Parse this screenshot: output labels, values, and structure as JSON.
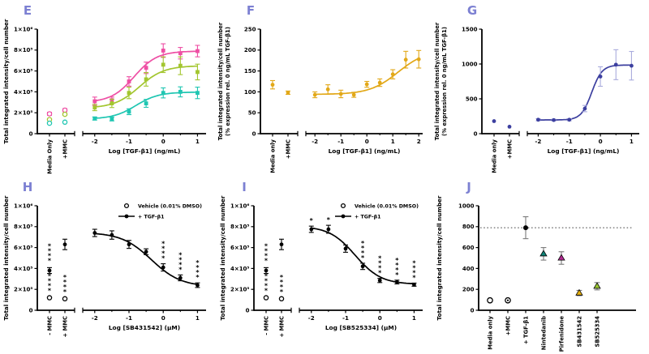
{
  "style": {
    "background": "#ffffff",
    "panel_letter_color": "#7c80d2",
    "axis_color": "#000000",
    "pink": "#ee4fa4",
    "green": "#a3c62f",
    "teal": "#1fc6b2",
    "gold": "#e2a818",
    "indigo": "#3c3f9f",
    "indigo_light": "#a9abdd",
    "black": "#000000",
    "gray_err": "#7a7a7a"
  },
  "chart_data": [
    {
      "letter": "E",
      "type": "scatter",
      "ylabel_lines": [
        "Total integrated intensity/cell number"
      ],
      "ymax": 1000000,
      "yticks": [
        {
          "v": 0,
          "label": "0"
        },
        {
          "v": 200000,
          "label": "2×10⁵"
        },
        {
          "v": 400000,
          "label": "4×10⁵"
        },
        {
          "v": 600000,
          "label": "6×10⁵"
        },
        {
          "v": 800000,
          "label": "8×10⁵"
        },
        {
          "v": 1000000,
          "label": "1×10⁶"
        }
      ],
      "xlabel": "Log [TGF-β1] (ng/mL)",
      "xrange": [
        -2.35,
        1.25
      ],
      "x_major_ticks": [
        -2,
        -1,
        0,
        1
      ],
      "x_minor_step": 0.5,
      "axis_x": 46,
      "break_categories": {
        "labels": [
          "Media Only",
          "+MMC"
        ],
        "points": [
          {
            "cat": 0,
            "y": 190000,
            "err": 15000,
            "marker": "circle-open",
            "color": "#ee4fa4"
          },
          {
            "cat": 0,
            "y": 135000,
            "err": 0,
            "marker": "circle-open",
            "color": "#a3c62f"
          },
          {
            "cat": 0,
            "y": 100000,
            "err": 0,
            "marker": "circle-open",
            "color": "#1fc6b2"
          },
          {
            "cat": 1,
            "y": 225000,
            "err": 15000,
            "marker": "circle-open",
            "color": "#ee4fa4"
          },
          {
            "cat": 1,
            "y": 185000,
            "err": 10000,
            "marker": "circle-open",
            "color": "#a3c62f"
          },
          {
            "cat": 1,
            "y": 110000,
            "err": 0,
            "marker": "circle-open",
            "color": "#1fc6b2"
          }
        ]
      },
      "series": [
        {
          "name": "pink-series",
          "color": "#ee4fa4",
          "marker": "square",
          "x": [
            -2,
            -1.5,
            -1,
            -0.5,
            0,
            0.5,
            1
          ],
          "y": [
            310000,
            320000,
            500000,
            630000,
            795000,
            770000,
            790000
          ],
          "err": [
            40000,
            30000,
            45000,
            55000,
            65000,
            55000,
            55000
          ],
          "curve": {
            "bottom": 300000,
            "top": 790000,
            "logec50": -0.85,
            "hill": 1.3
          }
        },
        {
          "name": "green-series",
          "color": "#a3c62f",
          "marker": "square",
          "x": [
            -2,
            -1.5,
            -1,
            -0.5,
            0,
            0.5,
            1
          ],
          "y": [
            250000,
            290000,
            390000,
            520000,
            660000,
            650000,
            590000
          ],
          "err": [
            30000,
            40000,
            55000,
            65000,
            75000,
            85000,
            75000
          ],
          "curve": {
            "bottom": 245000,
            "top": 650000,
            "logec50": -0.7,
            "hill": 1.2
          }
        },
        {
          "name": "teal-series",
          "color": "#1fc6b2",
          "marker": "square",
          "x": [
            -2,
            -1.5,
            -1,
            -0.5,
            0,
            0.5,
            1
          ],
          "y": [
            145000,
            140000,
            210000,
            290000,
            390000,
            400000,
            390000
          ],
          "err": [
            15000,
            18000,
            28000,
            38000,
            48000,
            48000,
            55000
          ],
          "curve": {
            "bottom": 140000,
            "top": 398000,
            "logec50": -0.8,
            "hill": 1.3
          }
        }
      ]
    },
    {
      "letter": "F",
      "type": "scatter",
      "ylabel_lines": [
        "Total integrated intensity/cell number",
        "(% expression rel. 0 ng/mL TGF-β1)"
      ],
      "ymax": 250,
      "yticks": [
        {
          "v": 0,
          "label": "0"
        },
        {
          "v": 50,
          "label": "50"
        },
        {
          "v": 100,
          "label": "100"
        },
        {
          "v": 150,
          "label": "150"
        },
        {
          "v": 200,
          "label": "200"
        },
        {
          "v": 250,
          "label": "250"
        }
      ],
      "xlabel": "Log [TGF-β1] (ng/mL)",
      "xrange": [
        -2.35,
        2.15
      ],
      "x_major_ticks": [
        -2,
        -1,
        0,
        1,
        2
      ],
      "x_minor_step": 0.5,
      "axis_x": 54,
      "break_categories": {
        "labels": [
          "Media only",
          "+MMC"
        ],
        "points": [
          {
            "cat": 0,
            "y": 117,
            "err": 10,
            "marker": "circle-filled",
            "color": "#e2a818"
          },
          {
            "cat": 1,
            "y": 98,
            "err": 4,
            "marker": "circle-filled",
            "color": "#e2a818"
          }
        ]
      },
      "series": [
        {
          "name": "tgfb1-series",
          "color": "#e2a818",
          "marker": "circle-filled",
          "x": [
            -2,
            -1.5,
            -1,
            -0.5,
            0,
            0.5,
            1,
            1.5,
            2
          ],
          "y": [
            93,
            106,
            95,
            93,
            118,
            122,
            142,
            177,
            178
          ],
          "err": [
            7,
            11,
            9,
            6,
            7,
            9,
            11,
            20,
            21
          ],
          "curve": {
            "bottom": 94,
            "top": 200,
            "logec50": 1.2,
            "hill": 0.8
          }
        }
      ]
    },
    {
      "letter": "G",
      "type": "scatter",
      "ylabel_lines": [
        "Total integrated intensity/cell number",
        "(% expression rel. 0 ng/mL TGF-β1)"
      ],
      "ymax": 1500,
      "yticks": [
        {
          "v": 0,
          "label": "0"
        },
        {
          "v": 500,
          "label": "500"
        },
        {
          "v": 1000,
          "label": "1000"
        },
        {
          "v": 1500,
          "label": "1500"
        }
      ],
      "xlabel": "Log [TGF-β1] (ng/mL)",
      "xrange": [
        -2.35,
        1.25
      ],
      "x_major_ticks": [
        -2,
        -1,
        0,
        1
      ],
      "x_minor_step": 0.5,
      "axis_x": 60,
      "break_categories": {
        "labels": [
          "Media only",
          "+MMC"
        ],
        "points": [
          {
            "cat": 0,
            "y": 180,
            "err": 0,
            "marker": "circle-filled",
            "color": "#3c3f9f"
          },
          {
            "cat": 1,
            "y": 100,
            "err": 0,
            "marker": "circle-filled",
            "color": "#3c3f9f"
          }
        ]
      },
      "series": [
        {
          "name": "tgfb1-series",
          "color": "#3c3f9f",
          "err_color": "#a9abdd",
          "marker": "circle-filled",
          "x": [
            -2,
            -1.5,
            -1,
            -0.5,
            0,
            0.5,
            1
          ],
          "y": [
            200,
            195,
            200,
            360,
            820,
            990,
            975
          ],
          "err": [
            15,
            12,
            15,
            45,
            140,
            215,
            205
          ],
          "curve": {
            "bottom": 197,
            "top": 985,
            "logec50": -0.28,
            "hill": 2.6
          }
        }
      ]
    },
    {
      "letter": "H",
      "type": "scatter",
      "ylabel_lines": [
        "Total integrated intensity/cell number"
      ],
      "ymax": 1000000,
      "yticks": [
        {
          "v": 0,
          "label": "0"
        },
        {
          "v": 200000,
          "label": "2×10⁵"
        },
        {
          "v": 400000,
          "label": "4×10⁵"
        },
        {
          "v": 600000,
          "label": "6×10⁵"
        },
        {
          "v": 800000,
          "label": "8×10⁵"
        },
        {
          "v": 1000000,
          "label": "1×10⁶"
        }
      ],
      "xlabel": "Log [SB431542] (μM)",
      "xrange": [
        -2.35,
        1.25
      ],
      "x_major_ticks": [
        -2,
        -1,
        0,
        1
      ],
      "x_minor_step": 0.5,
      "axis_x": 46,
      "legend": {
        "items": [
          {
            "marker": "circle-open",
            "label": "Vehicle (0.01% DMSO)"
          },
          {
            "marker": "line-circle",
            "label": "+ TGF-β1"
          }
        ]
      },
      "break_categories": {
        "labels": [
          "- MMC",
          "+ MMC"
        ],
        "points": [
          {
            "cat": 0,
            "y": 380000,
            "err": 28000,
            "marker": "circle-filled",
            "color": "#000000",
            "stars": "****"
          },
          {
            "cat": 0,
            "y": 120000,
            "err": 0,
            "marker": "circle-open",
            "color": "#000000",
            "stars": "****"
          },
          {
            "cat": 1,
            "y": 630000,
            "err": 50000,
            "marker": "circle-filled",
            "color": "#000000"
          },
          {
            "cat": 1,
            "y": 110000,
            "err": 0,
            "marker": "circle-open",
            "color": "#000000",
            "stars": "****"
          }
        ]
      },
      "series": [
        {
          "name": "tgfb1-series",
          "color": "#000000",
          "marker": "circle-filled",
          "x": [
            -2,
            -1.5,
            -1,
            -0.5,
            0,
            0.5,
            1
          ],
          "y": [
            740000,
            720000,
            630000,
            560000,
            410000,
            310000,
            240000
          ],
          "err": [
            35000,
            40000,
            38000,
            28000,
            35000,
            28000,
            22000
          ],
          "curve": {
            "bottom": 225000,
            "top": 745000,
            "logec50": -0.35,
            "hill": -1.0
          },
          "stars": [
            {
              "i": 4,
              "t": "****"
            },
            {
              "i": 5,
              "t": "****"
            },
            {
              "i": 6,
              "t": "****"
            }
          ]
        }
      ]
    },
    {
      "letter": "I",
      "type": "scatter",
      "ylabel_lines": [
        "Total integrated intensity/cell number"
      ],
      "ymax": 1000000,
      "yticks": [
        {
          "v": 0,
          "label": "0"
        },
        {
          "v": 200000,
          "label": "2×10⁵"
        },
        {
          "v": 400000,
          "label": "4×10⁵"
        },
        {
          "v": 600000,
          "label": "6×10⁵"
        },
        {
          "v": 800000,
          "label": "8×10⁵"
        },
        {
          "v": 1000000,
          "label": "1×10⁶"
        }
      ],
      "xlabel": "Log [SB525334] (μM)",
      "xrange": [
        -2.35,
        1.25
      ],
      "x_major_ticks": [
        -2,
        -1,
        0,
        1
      ],
      "x_minor_step": 0.5,
      "axis_x": 46,
      "legend": {
        "items": [
          {
            "marker": "circle-open",
            "label": "Vehicle (0.01% DMSO)"
          },
          {
            "marker": "line-circle",
            "label": "+ TGF-β1"
          }
        ]
      },
      "break_categories": {
        "labels": [
          "- MMC",
          "+ MMC"
        ],
        "points": [
          {
            "cat": 0,
            "y": 380000,
            "err": 28000,
            "marker": "circle-filled",
            "color": "#000000",
            "stars": "****"
          },
          {
            "cat": 0,
            "y": 120000,
            "err": 0,
            "marker": "circle-open",
            "color": "#000000",
            "stars": "****"
          },
          {
            "cat": 1,
            "y": 630000,
            "err": 50000,
            "marker": "circle-filled",
            "color": "#000000"
          },
          {
            "cat": 1,
            "y": 110000,
            "err": 0,
            "marker": "circle-open",
            "color": "#000000",
            "stars": "****"
          }
        ]
      },
      "series": [
        {
          "name": "tgfb1-series",
          "color": "#000000",
          "marker": "circle-filled",
          "x": [
            -2,
            -1.5,
            -1,
            -0.5,
            0,
            0.5,
            1
          ],
          "y": [
            775000,
            775000,
            590000,
            420000,
            285000,
            270000,
            245000
          ],
          "err": [
            30000,
            38000,
            35000,
            30000,
            20000,
            18000,
            15000
          ],
          "curve": {
            "bottom": 248000,
            "top": 805000,
            "logec50": -0.72,
            "hill": -1.15
          },
          "stars": [
            {
              "i": 0,
              "t": "*"
            },
            {
              "i": 1,
              "t": "*"
            },
            {
              "i": 3,
              "t": "****"
            },
            {
              "i": 4,
              "t": "****"
            },
            {
              "i": 5,
              "t": "****"
            },
            {
              "i": 6,
              "t": "****"
            }
          ]
        }
      ]
    },
    {
      "letter": "J",
      "type": "categorical-scatter",
      "ylabel_lines": [
        "Total integrated intensity/cell number"
      ],
      "ymax": 1000,
      "yticks": [
        {
          "v": 0,
          "label": "0"
        },
        {
          "v": 200,
          "label": "200"
        },
        {
          "v": 400,
          "label": "400"
        },
        {
          "v": 600,
          "label": "600"
        },
        {
          "v": 800,
          "label": "800"
        },
        {
          "v": 1000,
          "label": "1000"
        }
      ],
      "axis_x": 56,
      "categories": [
        "Media only",
        "+MMC",
        "+ TGF-β1",
        "Nintedanib",
        "Pirfenidone",
        "SB431542",
        "SB525334"
      ],
      "err_color": "#7a7a7a",
      "points": [
        {
          "y": 95,
          "err": 0,
          "marker": "circle-open",
          "color": "#000000"
        },
        {
          "y": 95,
          "err": 0,
          "marker": "circle-dot",
          "color": "#000000"
        },
        {
          "y": 790,
          "err": 105,
          "marker": "circle-filled",
          "color": "#000000"
        },
        {
          "y": 540,
          "err": 60,
          "marker": "triangle",
          "color": "#0f8276"
        },
        {
          "y": 500,
          "err": 60,
          "marker": "triangle",
          "color": "#b12a90"
        },
        {
          "y": 165,
          "err": 25,
          "marker": "triangle",
          "color": "#e7b10f"
        },
        {
          "y": 230,
          "err": 35,
          "marker": "triangle",
          "color": "#9bc832"
        }
      ],
      "hline": {
        "y": 790,
        "style": "dotted"
      }
    }
  ]
}
